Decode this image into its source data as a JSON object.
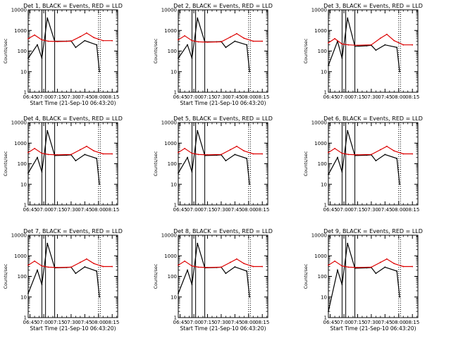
{
  "chart_data": [
    {
      "type": "line",
      "title": "Det 1, BLACK = Events, RED = LLD",
      "xlabel": "Start Time (21-Sep-10 06:43:20)",
      "ylabel": "Counts/sec",
      "ylim": [
        1,
        10000
      ],
      "yscale": "log",
      "x_ticks": [
        "06:45",
        "07:00",
        "07:15",
        "07:30",
        "07:45",
        "08:00",
        "08:15"
      ],
      "y_ticks": [
        "1",
        "10",
        "100",
        "1000",
        "10000"
      ],
      "series": [
        {
          "name": "Events",
          "color": "#000000",
          "x": [
            "06:43",
            "06:53",
            "06:58",
            "07:04",
            "07:12",
            "07:25",
            "07:30",
            "07:35",
            "07:45",
            "07:58",
            "08:01"
          ],
          "y": [
            45,
            200,
            45,
            4000,
            300,
            300,
            310,
            150,
            320,
            200,
            10
          ]
        },
        {
          "name": "LLD",
          "color": "#dd0000",
          "x": [
            "06:43",
            "06:50",
            "06:58",
            "07:05",
            "07:15",
            "07:30",
            "07:40",
            "07:47",
            "07:55",
            "08:05",
            "08:15"
          ],
          "y": [
            400,
            600,
            350,
            300,
            290,
            300,
            500,
            750,
            450,
            320,
            320
          ]
        }
      ],
      "vlines": [
        "06:58",
        "07:02",
        "07:12",
        "08:00",
        "08:02"
      ]
    },
    {
      "type": "line",
      "title": "Det 2, BLACK = Events, RED = LLD",
      "xlabel": "Start Time (21-Sep-10 06:43:20)",
      "ylabel": "Counts/sec",
      "ylim": [
        1,
        10000
      ],
      "yscale": "log",
      "x_ticks": [
        "06:45",
        "07:00",
        "07:15",
        "07:30",
        "07:45",
        "08:00",
        "08:15"
      ],
      "y_ticks": [
        "1",
        "10",
        "100",
        "1000",
        "10000"
      ],
      "series": [
        {
          "name": "Events",
          "color": "#000000",
          "x": [
            "06:43",
            "06:53",
            "06:58",
            "07:04",
            "07:12",
            "07:25",
            "07:30",
            "07:35",
            "07:45",
            "07:58",
            "08:01"
          ],
          "y": [
            45,
            200,
            45,
            4000,
            280,
            280,
            290,
            150,
            300,
            200,
            10
          ]
        },
        {
          "name": "LLD",
          "color": "#dd0000",
          "x": [
            "06:43",
            "06:50",
            "06:58",
            "07:05",
            "07:15",
            "07:30",
            "07:40",
            "07:47",
            "07:55",
            "08:05",
            "08:15"
          ],
          "y": [
            350,
            550,
            320,
            280,
            270,
            280,
            480,
            700,
            420,
            300,
            300
          ]
        }
      ],
      "vlines": [
        "06:58",
        "07:02",
        "07:12",
        "08:00",
        "08:02"
      ]
    },
    {
      "type": "line",
      "title": "Det 3, BLACK = Events, RED = LLD",
      "xlabel": "",
      "ylabel": "Counts/sec",
      "ylim": [
        1,
        10000
      ],
      "yscale": "log",
      "x_ticks": [
        "06:45",
        "07:00",
        "07:15",
        "07:30",
        "07:45",
        "08:00",
        "08:15"
      ],
      "y_ticks": [
        "1",
        "10",
        "100",
        "1000",
        "10000"
      ],
      "series": [
        {
          "name": "Events",
          "color": "#000000",
          "x": [
            "06:43",
            "06:53",
            "06:58",
            "07:04",
            "07:12",
            "07:25",
            "07:30",
            "07:35",
            "07:45",
            "07:58",
            "08:01"
          ],
          "y": [
            20,
            300,
            45,
            4000,
            170,
            180,
            190,
            110,
            200,
            150,
            10
          ]
        },
        {
          "name": "LLD",
          "color": "#dd0000",
          "x": [
            "06:43",
            "06:50",
            "06:58",
            "07:05",
            "07:15",
            "07:30",
            "07:40",
            "07:47",
            "07:55",
            "08:05",
            "08:15"
          ],
          "y": [
            250,
            400,
            220,
            200,
            190,
            200,
            420,
            650,
            320,
            200,
            200
          ]
        }
      ],
      "vlines": [
        "06:58",
        "07:02",
        "07:12",
        "08:00",
        "08:02"
      ]
    },
    {
      "type": "line",
      "title": "Det 4, BLACK = Events, RED = LLD",
      "xlabel": "",
      "ylabel": "Counts/sec",
      "ylim": [
        1,
        10000
      ],
      "yscale": "log",
      "x_ticks": [
        "06:45",
        "07:00",
        "07:15",
        "07:30",
        "07:45",
        "08:00",
        "08:15"
      ],
      "y_ticks": [
        "1",
        "10",
        "100",
        "1000",
        "10000"
      ],
      "series": [
        {
          "name": "Events",
          "color": "#000000",
          "x": [
            "06:43",
            "06:53",
            "06:58",
            "07:04",
            "07:12",
            "07:25",
            "07:30",
            "07:35",
            "07:45",
            "07:58",
            "08:01"
          ],
          "y": [
            35,
            200,
            40,
            4000,
            250,
            260,
            270,
            140,
            280,
            180,
            10
          ]
        },
        {
          "name": "LLD",
          "color": "#dd0000",
          "x": [
            "06:43",
            "06:50",
            "06:58",
            "07:05",
            "07:15",
            "07:30",
            "07:40",
            "07:47",
            "07:55",
            "08:05",
            "08:15"
          ],
          "y": [
            350,
            550,
            320,
            280,
            270,
            280,
            480,
            700,
            420,
            300,
            300
          ]
        }
      ],
      "vlines": [
        "06:58",
        "07:02",
        "07:12",
        "08:00",
        "08:02"
      ]
    },
    {
      "type": "line",
      "title": "Det 5, BLACK = Events, RED = LLD",
      "xlabel": "",
      "ylabel": "Counts/sec",
      "ylim": [
        1,
        10000
      ],
      "yscale": "log",
      "x_ticks": [
        "06:45",
        "07:00",
        "07:15",
        "07:30",
        "07:45",
        "08:00",
        "08:15"
      ],
      "y_ticks": [
        "1",
        "10",
        "100",
        "1000",
        "10000"
      ],
      "series": [
        {
          "name": "Events",
          "color": "#000000",
          "x": [
            "06:43",
            "06:53",
            "06:58",
            "07:04",
            "07:12",
            "07:25",
            "07:30",
            "07:35",
            "07:45",
            "07:58",
            "08:01"
          ],
          "y": [
            35,
            200,
            40,
            4000,
            250,
            260,
            270,
            140,
            280,
            180,
            10
          ]
        },
        {
          "name": "LLD",
          "color": "#dd0000",
          "x": [
            "06:43",
            "06:50",
            "06:58",
            "07:05",
            "07:15",
            "07:30",
            "07:40",
            "07:47",
            "07:55",
            "08:05",
            "08:15"
          ],
          "y": [
            350,
            550,
            320,
            280,
            270,
            280,
            480,
            700,
            420,
            300,
            300
          ]
        }
      ],
      "vlines": [
        "06:58",
        "07:02",
        "07:12",
        "08:00",
        "08:02"
      ]
    },
    {
      "type": "line",
      "title": "Det 6, BLACK = Events, RED = LLD",
      "xlabel": "",
      "ylabel": "Counts/sec",
      "ylim": [
        1,
        10000
      ],
      "yscale": "log",
      "x_ticks": [
        "06:45",
        "07:00",
        "07:15",
        "07:30",
        "07:45",
        "08:00",
        "08:15"
      ],
      "y_ticks": [
        "1",
        "10",
        "100",
        "1000",
        "10000"
      ],
      "series": [
        {
          "name": "Events",
          "color": "#000000",
          "x": [
            "06:43",
            "06:53",
            "06:58",
            "07:04",
            "07:12",
            "07:25",
            "07:30",
            "07:35",
            "07:45",
            "07:58",
            "08:01"
          ],
          "y": [
            30,
            200,
            40,
            4000,
            250,
            260,
            270,
            140,
            280,
            180,
            10
          ]
        },
        {
          "name": "LLD",
          "color": "#dd0000",
          "x": [
            "06:43",
            "06:50",
            "06:58",
            "07:05",
            "07:15",
            "07:30",
            "07:40",
            "07:47",
            "07:55",
            "08:05",
            "08:15"
          ],
          "y": [
            350,
            550,
            320,
            280,
            270,
            280,
            480,
            700,
            420,
            300,
            300
          ]
        }
      ],
      "vlines": [
        "06:58",
        "07:02",
        "07:12",
        "08:00",
        "08:02"
      ]
    },
    {
      "type": "line",
      "title": "Det 7, BLACK = Events, RED = LLD",
      "xlabel": "Start Time (21-Sep-10 06:43:20)",
      "ylabel": "Counts/sec",
      "ylim": [
        1,
        10000
      ],
      "yscale": "log",
      "x_ticks": [
        "06:45",
        "07:00",
        "07:15",
        "07:30",
        "07:45",
        "08:00",
        "08:15"
      ],
      "y_ticks": [
        "1",
        "10",
        "100",
        "1000",
        "10000"
      ],
      "series": [
        {
          "name": "Events",
          "color": "#000000",
          "x": [
            "06:43",
            "06:53",
            "06:58",
            "07:04",
            "07:12",
            "07:25",
            "07:30",
            "07:35",
            "07:45",
            "07:58",
            "08:01"
          ],
          "y": [
            15,
            200,
            40,
            4000,
            260,
            270,
            280,
            140,
            290,
            180,
            10
          ]
        },
        {
          "name": "LLD",
          "color": "#dd0000",
          "x": [
            "06:43",
            "06:50",
            "06:58",
            "07:05",
            "07:15",
            "07:30",
            "07:40",
            "07:47",
            "07:55",
            "08:05",
            "08:15"
          ],
          "y": [
            350,
            550,
            320,
            280,
            270,
            280,
            480,
            700,
            420,
            300,
            300
          ]
        }
      ],
      "vlines": [
        "06:58",
        "07:02",
        "07:12",
        "08:00",
        "08:02"
      ]
    },
    {
      "type": "line",
      "title": "Det 8, BLACK = Events, RED = LLD",
      "xlabel": "Start Time (21-Sep-10 06:43:20)",
      "ylabel": "Counts/sec",
      "ylim": [
        1,
        10000
      ],
      "yscale": "log",
      "x_ticks": [
        "06:45",
        "07:00",
        "07:15",
        "07:30",
        "07:45",
        "08:00",
        "08:15"
      ],
      "y_ticks": [
        "1",
        "10",
        "100",
        "1000",
        "10000"
      ],
      "series": [
        {
          "name": "Events",
          "color": "#000000",
          "x": [
            "06:43",
            "06:53",
            "06:58",
            "07:04",
            "07:12",
            "07:25",
            "07:30",
            "07:35",
            "07:45",
            "07:58",
            "08:01"
          ],
          "y": [
            15,
            200,
            40,
            4000,
            260,
            270,
            280,
            140,
            290,
            180,
            10
          ]
        },
        {
          "name": "LLD",
          "color": "#dd0000",
          "x": [
            "06:43",
            "06:50",
            "06:58",
            "07:05",
            "07:15",
            "07:30",
            "07:40",
            "07:47",
            "07:55",
            "08:05",
            "08:15"
          ],
          "y": [
            350,
            550,
            320,
            280,
            270,
            280,
            480,
            700,
            420,
            300,
            300
          ]
        }
      ],
      "vlines": [
        "06:58",
        "07:02",
        "07:12",
        "08:00",
        "08:02"
      ]
    },
    {
      "type": "line",
      "title": "Det 9, BLACK = Events, RED = LLD",
      "xlabel": "Start Time (21-Sep-10 06:43:20)",
      "ylabel": "Counts/sec",
      "ylim": [
        1,
        10000
      ],
      "yscale": "log",
      "x_ticks": [
        "06:45",
        "07:00",
        "07:15",
        "07:30",
        "07:45",
        "08:00",
        "08:15"
      ],
      "y_ticks": [
        "1",
        "10",
        "100",
        "1000",
        "10000"
      ],
      "series": [
        {
          "name": "Events",
          "color": "#000000",
          "x": [
            "06:43",
            "06:53",
            "06:58",
            "07:04",
            "07:12",
            "07:25",
            "07:30",
            "07:35",
            "07:45",
            "07:58",
            "08:01"
          ],
          "y": [
            2,
            200,
            40,
            4000,
            250,
            260,
            270,
            140,
            280,
            180,
            10
          ]
        },
        {
          "name": "LLD",
          "color": "#dd0000",
          "x": [
            "06:43",
            "06:50",
            "06:58",
            "07:05",
            "07:15",
            "07:30",
            "07:40",
            "07:47",
            "07:55",
            "08:05",
            "08:15"
          ],
          "y": [
            350,
            550,
            320,
            280,
            270,
            280,
            480,
            700,
            420,
            300,
            300
          ]
        }
      ],
      "vlines": [
        "06:58",
        "07:02",
        "07:12",
        "08:00",
        "08:02"
      ]
    }
  ]
}
